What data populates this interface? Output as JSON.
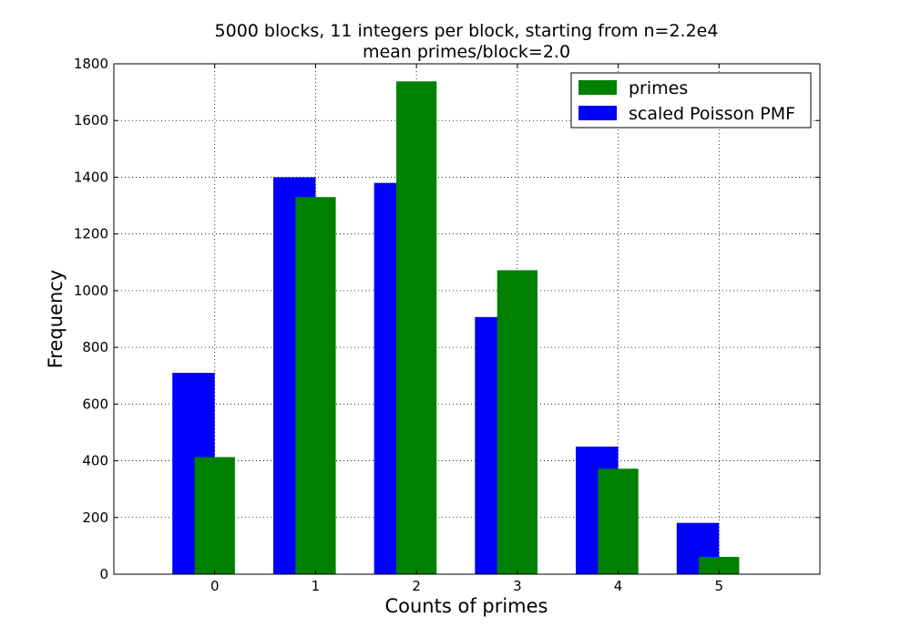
{
  "chart_data": {
    "type": "bar",
    "title": "5000 blocks, 11 integers per block, starting from n=2.2e4",
    "subtitle": "mean primes/block=2.0",
    "xlabel": "Counts of primes",
    "ylabel": "Frequency",
    "categories": [
      "0",
      "1",
      "2",
      "3",
      "4",
      "5"
    ],
    "xlim": [
      -1,
      6
    ],
    "ylim": [
      0,
      1800
    ],
    "yticks": [
      0,
      200,
      400,
      600,
      800,
      1000,
      1200,
      1400,
      1600,
      1800
    ],
    "grid": true,
    "legend_position": "top-right",
    "series": [
      {
        "name": "scaled Poisson PMF",
        "color": "#0000ff",
        "values": [
          710,
          1400,
          1380,
          907,
          450,
          181
        ]
      },
      {
        "name": "primes",
        "color": "#008000",
        "values": [
          413,
          1330,
          1738,
          1072,
          372,
          61
        ]
      }
    ],
    "legend_order": [
      "primes",
      "scaled Poisson PMF"
    ]
  }
}
